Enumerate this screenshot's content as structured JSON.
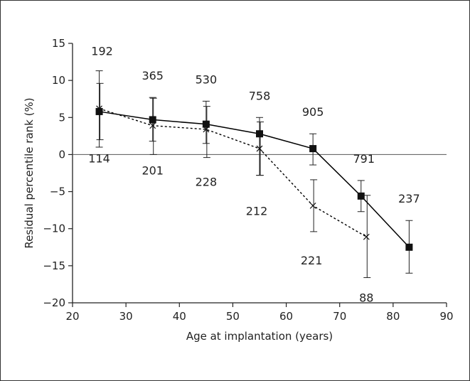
{
  "chart_data": {
    "type": "line",
    "xlabel": "Age at implantation (years)",
    "ylabel": "Residual percentile rank (%)",
    "xlim": [
      20,
      90
    ],
    "ylim": [
      -20,
      15
    ],
    "xticks": [
      20,
      30,
      40,
      50,
      60,
      70,
      80,
      90
    ],
    "yticks": [
      15,
      10,
      5,
      0,
      -5,
      -10,
      -15,
      -20
    ],
    "zero_line": true,
    "grid": false,
    "series": [
      {
        "style": "solid",
        "marker": "square",
        "color": "#000000",
        "x": [
          25,
          35,
          45,
          55,
          65,
          74,
          83
        ],
        "y": [
          5.8,
          4.7,
          4.1,
          2.8,
          0.8,
          -5.6,
          -12.5
        ],
        "err_low": [
          1.0,
          1.8,
          1.5,
          -2.8,
          -1.4,
          -7.7,
          -16.0
        ],
        "err_high": [
          11.3,
          7.7,
          7.2,
          5.0,
          2.8,
          -3.5,
          -8.9
        ],
        "n_labels": [
          "192",
          "365",
          "530",
          "758",
          "905",
          "791",
          "237"
        ]
      },
      {
        "style": "dotted",
        "marker": "x",
        "color": "#000000",
        "x": [
          25,
          35,
          45,
          55,
          65,
          75
        ],
        "y": [
          6.2,
          3.9,
          3.4,
          0.8,
          -6.9,
          -11.1
        ],
        "err_low": [
          2.0,
          0.0,
          -0.4,
          -2.8,
          -10.4,
          -16.6
        ],
        "err_high": [
          9.6,
          7.6,
          6.5,
          4.4,
          -3.4,
          -5.5
        ],
        "n_labels": [
          "114",
          "201",
          "228",
          "212",
          "221",
          "88"
        ]
      }
    ]
  }
}
